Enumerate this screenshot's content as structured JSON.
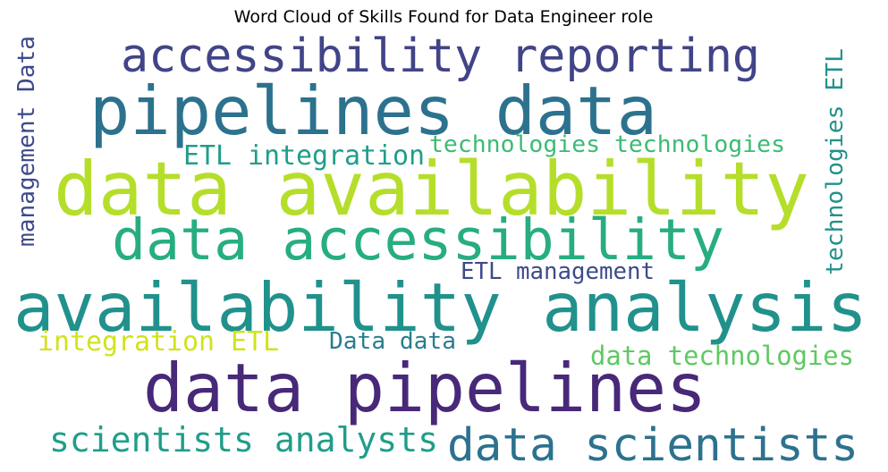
{
  "chart_data": {
    "type": "wordcloud",
    "title": "Word Cloud of Skills Found for Data Engineer role",
    "words": [
      {
        "text": "accessibility reporting",
        "color": "#414487"
      },
      {
        "text": "pipelines data",
        "color": "#2c728e"
      },
      {
        "text": "data availability",
        "color": "#b5de2b"
      },
      {
        "text": "data accessibility",
        "color": "#27ad81"
      },
      {
        "text": "availability analysis",
        "color": "#21918c"
      },
      {
        "text": "data pipelines",
        "color": "#482878"
      },
      {
        "text": "data scientists",
        "color": "#2c728e"
      },
      {
        "text": "scientists analysts",
        "color": "#1f9e89"
      },
      {
        "text": "ETL integration",
        "color": "#1f9e89"
      },
      {
        "text": "technologies technologies",
        "color": "#3bbb75"
      },
      {
        "text": "ETL management",
        "color": "#3e4a89"
      },
      {
        "text": "integration ETL",
        "color": "#d2e21b"
      },
      {
        "text": "Data data",
        "color": "#287d8e"
      },
      {
        "text": "data technologies",
        "color": "#5ec962"
      },
      {
        "text": "management Data",
        "color": "#3e4a89"
      },
      {
        "text": "technologies ETL",
        "color": "#21918c"
      }
    ]
  }
}
